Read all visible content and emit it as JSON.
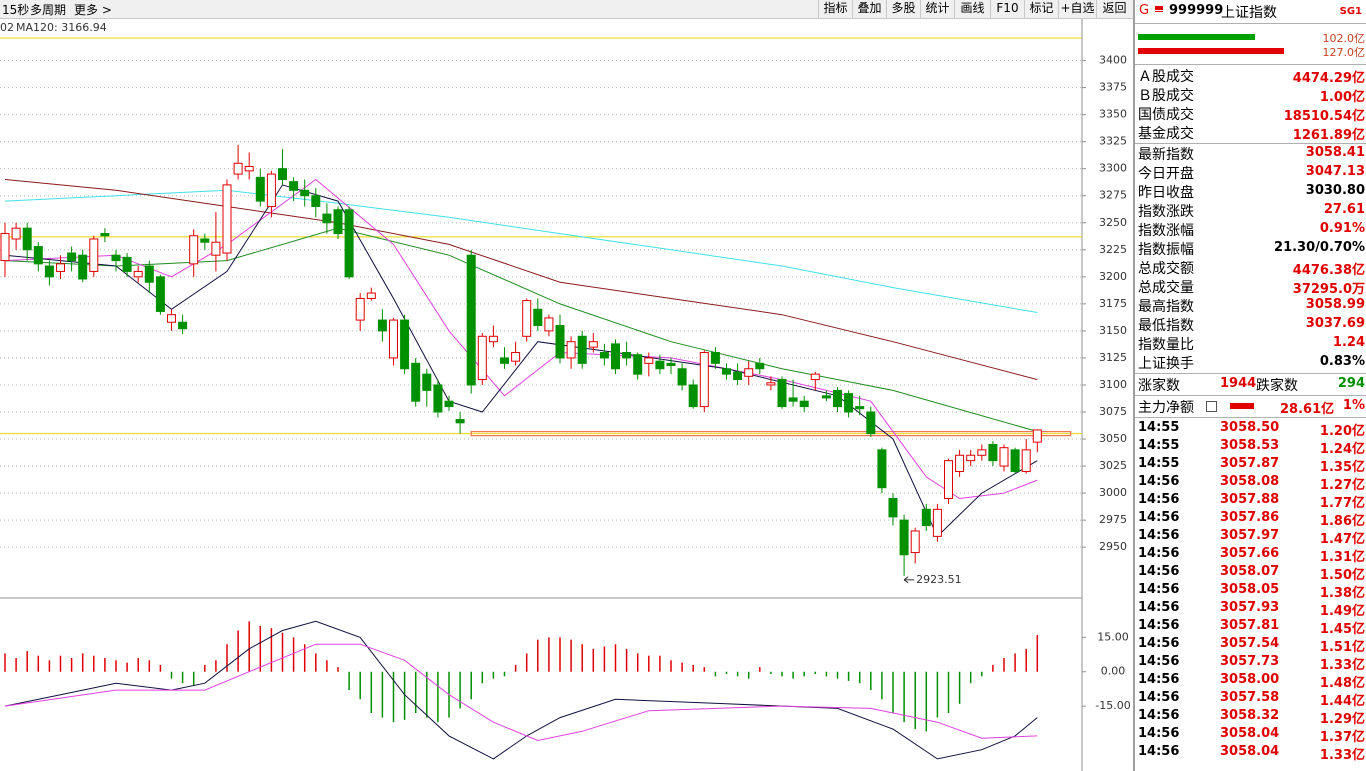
{
  "toolbar": {
    "left": [
      "15秒",
      "多周期",
      "更多 >"
    ],
    "right": [
      "指标",
      "叠加",
      "多股",
      "统计",
      "画线",
      "F10",
      "标记",
      "+自选",
      "返回"
    ]
  },
  "indicator_label": {
    "prefix": "02",
    "text": "MA120: 3166.94",
    "color": "#00b8c8"
  },
  "chart_data": [
    {
      "type": "candlestick",
      "open": [
        3215,
        3235,
        3245,
        3228,
        3210,
        3205,
        3222,
        3220,
        3205,
        3240,
        3220,
        3218,
        3200,
        3210,
        3200,
        3158,
        3158,
        3212,
        3235,
        3220,
        3222,
        3295,
        3298,
        3292,
        3265,
        3300,
        3288,
        3280,
        3275,
        3258,
        3262,
        3262,
        3160,
        3180,
        3160,
        3125,
        3160,
        3120,
        3110,
        3100,
        3085,
        3068,
        3220,
        3105,
        3140,
        3125,
        3122,
        3145,
        3170,
        3150,
        3155,
        3125,
        3145,
        3135,
        3130,
        3138,
        3130,
        3128,
        3120,
        3122,
        3120,
        3115,
        3100,
        3080,
        3130,
        3115,
        3112,
        3108,
        3120,
        3100,
        3105,
        3088,
        3085,
        3105,
        3090,
        3095,
        3092,
        3080,
        3075,
        3040,
        2995,
        2975,
        2945,
        2985,
        2960,
        2995,
        3020,
        3030,
        3035,
        3045,
        3025,
        3040,
        3020,
        3047.13
      ],
      "close": [
        3240,
        3245,
        3225,
        3212,
        3200,
        3212,
        3215,
        3198,
        3235,
        3238,
        3215,
        3205,
        3205,
        3195,
        3168,
        3165,
        3152,
        3238,
        3232,
        3232,
        3285,
        3305,
        3302,
        3270,
        3295,
        3290,
        3280,
        3275,
        3265,
        3250,
        3240,
        3200,
        3180,
        3185,
        3150,
        3160,
        3115,
        3085,
        3095,
        3075,
        3080,
        3065,
        3100,
        3145,
        3145,
        3120,
        3130,
        3178,
        3155,
        3162,
        3125,
        3140,
        3120,
        3140,
        3125,
        3115,
        3125,
        3110,
        3125,
        3115,
        3118,
        3100,
        3080,
        3130,
        3120,
        3110,
        3105,
        3115,
        3115,
        3102,
        3080,
        3085,
        3080,
        3110,
        3088,
        3080,
        3075,
        3078,
        3055,
        3005,
        2978,
        2943,
        2965,
        2970,
        2985,
        3030,
        3035,
        3035,
        3040,
        3030,
        3042,
        3020,
        3040,
        3058.41
      ],
      "high": [
        3250,
        3250,
        3250,
        3232,
        3215,
        3220,
        3228,
        3225,
        3238,
        3245,
        3225,
        3222,
        3210,
        3215,
        3202,
        3170,
        3165,
        3244,
        3240,
        3260,
        3290,
        3322,
        3315,
        3300,
        3298,
        3318,
        3292,
        3290,
        3282,
        3268,
        3265,
        3265,
        3185,
        3190,
        3170,
        3162,
        3165,
        3125,
        3115,
        3105,
        3090,
        3075,
        3225,
        3148,
        3155,
        3135,
        3140,
        3180,
        3180,
        3165,
        3165,
        3145,
        3150,
        3148,
        3138,
        3142,
        3140,
        3130,
        3130,
        3128,
        3125,
        3120,
        3105,
        3132,
        3135,
        3120,
        3120,
        3122,
        3125,
        3108,
        3108,
        3105,
        3090,
        3112,
        3095,
        3098,
        3095,
        3090,
        3080,
        3042,
        3000,
        2980,
        2968,
        2990,
        2990,
        3032,
        3040,
        3040,
        3045,
        3048,
        3045,
        3042,
        3050,
        3058.99
      ],
      "low": [
        3200,
        3225,
        3215,
        3205,
        3192,
        3198,
        3205,
        3195,
        3200,
        3232,
        3205,
        3200,
        3195,
        3185,
        3165,
        3150,
        3147,
        3200,
        3225,
        3205,
        3215,
        3290,
        3290,
        3265,
        3255,
        3285,
        3270,
        3265,
        3255,
        3240,
        3235,
        3198,
        3150,
        3178,
        3140,
        3118,
        3110,
        3080,
        3080,
        3070,
        3076,
        3055,
        3092,
        3100,
        3135,
        3115,
        3118,
        3140,
        3150,
        3145,
        3120,
        3115,
        3115,
        3130,
        3118,
        3110,
        3118,
        3105,
        3108,
        3110,
        3110,
        3095,
        3078,
        3075,
        3115,
        3105,
        3100,
        3100,
        3110,
        3095,
        3078,
        3080,
        3075,
        3095,
        3085,
        3075,
        3070,
        3072,
        3052,
        3000,
        2970,
        2923.51,
        2935,
        2965,
        2955,
        2990,
        3015,
        3025,
        3030,
        3025,
        3020,
        3018,
        3018,
        3037.69
      ],
      "up_color": "#e00000",
      "down_color": "#009000",
      "ylim": [
        2903,
        3419
      ],
      "yticks": [
        3400,
        3375,
        3350,
        3325,
        3300,
        3275,
        3250,
        3225,
        3200,
        3175,
        3150,
        3125,
        3100,
        3075,
        3050,
        3025,
        3000,
        2975,
        2950
      ],
      "grid": true,
      "lines": [
        {
          "color": "#40e0e8",
          "x": [
            0,
            10,
            20,
            30,
            40,
            50,
            60,
            70,
            80,
            93
          ],
          "values": [
            3270,
            3275,
            3280,
            3268,
            3255,
            3240,
            3225,
            3210,
            3190,
            3167
          ]
        },
        {
          "color": "#8b1a1a",
          "x": [
            0,
            10,
            20,
            30,
            40,
            50,
            60,
            70,
            80,
            93
          ],
          "values": [
            3290,
            3280,
            3265,
            3250,
            3230,
            3195,
            3180,
            3165,
            3140,
            3105
          ]
        },
        {
          "color": "#1e8c1e",
          "x": [
            0,
            10,
            20,
            30,
            40,
            50,
            60,
            70,
            80,
            93
          ],
          "values": [
            3215,
            3210,
            3215,
            3245,
            3220,
            3175,
            3140,
            3115,
            3095,
            3057
          ]
        },
        {
          "color": "#e040e0",
          "x": [
            0,
            10,
            15,
            20,
            28,
            35,
            40,
            45,
            50,
            60,
            70,
            78,
            83,
            86,
            90,
            93
          ],
          "values": [
            3215,
            3220,
            3200,
            3230,
            3290,
            3230,
            3150,
            3090,
            3130,
            3125,
            3105,
            3085,
            3015,
            2995,
            3000,
            3012
          ]
        },
        {
          "color": "#101040",
          "x": [
            0,
            10,
            15,
            20,
            25,
            30,
            35,
            40,
            43,
            48,
            55,
            65,
            75,
            80,
            84,
            88,
            93
          ],
          "values": [
            3220,
            3210,
            3170,
            3205,
            3285,
            3270,
            3180,
            3085,
            3075,
            3140,
            3130,
            3115,
            3090,
            3050,
            2960,
            3000,
            3030
          ]
        }
      ],
      "hlines": [
        {
          "value": 3237,
          "color": "#e8d800"
        },
        {
          "value": 3055,
          "color": "#e8d800"
        }
      ],
      "support": {
        "value": 3055,
        "x": [
          42,
          96
        ],
        "color": "#f07050"
      },
      "annotation": {
        "value": 2923.51,
        "label": "2923.51",
        "x": 81
      }
    },
    {
      "type": "macd",
      "values": [
        8,
        6,
        9,
        7,
        5,
        7,
        6,
        8,
        7,
        6,
        5,
        4,
        6,
        5,
        3,
        -3,
        -5,
        -6,
        3,
        5,
        12,
        18,
        22,
        20,
        19,
        17,
        15,
        12,
        8,
        5,
        2,
        -8,
        -12,
        -18,
        -20,
        -22,
        -21,
        -18,
        -20,
        -22,
        -20,
        -16,
        -12,
        -5,
        -3,
        -2,
        3,
        8,
        14,
        15,
        15,
        14,
        12,
        10,
        11,
        12,
        10,
        8,
        7,
        7,
        5,
        4,
        3,
        2,
        -2,
        -1,
        -2,
        -3,
        2,
        -1,
        -2,
        -3,
        -2,
        -1,
        -2,
        -3,
        -4,
        -5,
        -8,
        -12,
        -18,
        -22,
        -25,
        -26,
        -20,
        -18,
        -14,
        -5,
        -2,
        3,
        6,
        8,
        10,
        16
      ],
      "up_color": "#e00000",
      "down_color": "#009000",
      "ylim": [
        -43.3,
        31.3
      ],
      "yticks": [
        {
          "value": 15,
          "label": "15.00"
        },
        {
          "value": 0,
          "label": "0.00"
        },
        {
          "value": -15,
          "label": "-15.00"
        }
      ],
      "lines": [
        {
          "color": "#101040",
          "x": [
            0,
            5,
            10,
            15,
            18,
            22,
            25,
            28,
            32,
            36,
            40,
            44,
            47,
            50,
            55,
            65,
            75,
            80,
            84,
            88,
            91,
            93
          ],
          "values": [
            -15,
            -10,
            -5,
            -8,
            -5,
            10,
            18,
            22,
            15,
            -10,
            -28,
            -38,
            -28,
            -20,
            -12,
            -14,
            -16,
            -25,
            -38,
            -34,
            -28,
            -20
          ]
        },
        {
          "color": "#e040e0",
          "x": [
            0,
            10,
            18,
            22,
            28,
            32,
            36,
            40,
            44,
            48,
            52,
            58,
            70,
            78,
            84,
            88,
            93
          ],
          "values": [
            -15,
            -8,
            -8,
            0,
            12,
            12,
            5,
            -10,
            -22,
            -30,
            -26,
            -17,
            -15,
            -16,
            -22,
            -29,
            -28
          ]
        }
      ]
    }
  ],
  "panel": {
    "header": {
      "mark": "G",
      "code": "999999",
      "name": "上证指数",
      "tag": "SG1"
    },
    "flows": [
      {
        "value": 102.0,
        "label": "102.0亿",
        "color": "#00a000"
      },
      {
        "value": 127.0,
        "label": "127.0亿",
        "color": "#e00000"
      }
    ],
    "turnover": [
      {
        "label": "Ａ股成交",
        "value": "4474.29亿",
        "color": "#e00000"
      },
      {
        "label": "Ｂ股成交",
        "value": "1.00亿",
        "color": "#e00000"
      },
      {
        "label": "国债成交",
        "value": "18510.54亿",
        "color": "#e00000"
      },
      {
        "label": "基金成交",
        "value": "1261.89亿",
        "color": "#e00000"
      }
    ],
    "index": [
      {
        "label": "最新指数",
        "value": "3058.41",
        "color": "#e00000"
      },
      {
        "label": "今日开盘",
        "value": "3047.13",
        "color": "#e00000"
      },
      {
        "label": "昨日收盘",
        "value": "3030.80",
        "color": "#000000"
      },
      {
        "label": "指数涨跌",
        "value": "27.61",
        "color": "#e00000"
      },
      {
        "label": "指数涨幅",
        "value": "0.91%",
        "color": "#e00000"
      },
      {
        "label": "指数振幅",
        "value": "21.30/0.70%",
        "color": "#000000"
      },
      {
        "label": "总成交额",
        "value": "4476.38亿",
        "color": "#e00000"
      },
      {
        "label": "总成交量",
        "value": "37295.0万",
        "color": "#e00000"
      },
      {
        "label": "最高指数",
        "value": "3058.99",
        "color": "#e00000"
      },
      {
        "label": "最低指数",
        "value": "3037.69",
        "color": "#e00000"
      },
      {
        "label": "指数量比",
        "value": "1.24",
        "color": "#e00000"
      },
      {
        "label": "上证换手",
        "value": "0.83%",
        "color": "#000000"
      }
    ],
    "breadth": {
      "up_label": "涨家数",
      "up": "1944",
      "down_label": "跌家数",
      "down": "294"
    },
    "main_force": {
      "label": "主力净额",
      "value": "28.61亿",
      "pct": "1%"
    },
    "trades": [
      [
        "14:55",
        "3058.50",
        "1.20亿"
      ],
      [
        "14:55",
        "3058.53",
        "1.24亿"
      ],
      [
        "14:55",
        "3057.87",
        "1.35亿"
      ],
      [
        "14:56",
        "3058.08",
        "1.27亿"
      ],
      [
        "14:56",
        "3057.88",
        "1.77亿"
      ],
      [
        "14:56",
        "3057.86",
        "1.86亿"
      ],
      [
        "14:56",
        "3057.97",
        "1.47亿"
      ],
      [
        "14:56",
        "3057.66",
        "1.31亿"
      ],
      [
        "14:56",
        "3058.07",
        "1.50亿"
      ],
      [
        "14:56",
        "3058.05",
        "1.38亿"
      ],
      [
        "14:56",
        "3057.93",
        "1.49亿"
      ],
      [
        "14:56",
        "3057.81",
        "1.45亿"
      ],
      [
        "14:56",
        "3057.54",
        "1.51亿"
      ],
      [
        "14:56",
        "3057.73",
        "1.33亿"
      ],
      [
        "14:56",
        "3058.00",
        "1.48亿"
      ],
      [
        "14:56",
        "3057.58",
        "1.44亿"
      ],
      [
        "14:56",
        "3058.32",
        "1.29亿"
      ],
      [
        "14:56",
        "3058.04",
        "1.37亿"
      ],
      [
        "14:56",
        "3058.04",
        "1.33亿"
      ]
    ]
  }
}
